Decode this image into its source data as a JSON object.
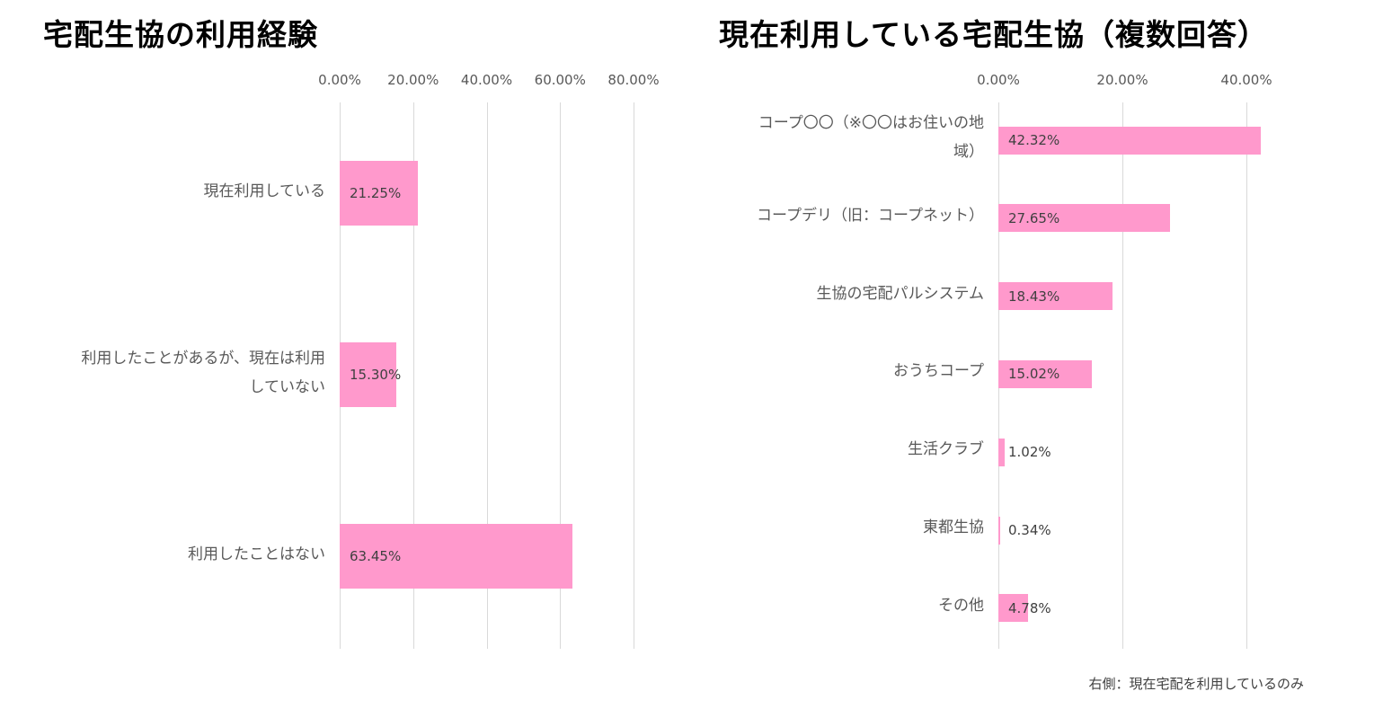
{
  "chart_data": [
    {
      "type": "bar",
      "orientation": "horizontal",
      "title": "宅配生協の利用経験",
      "categories": [
        "現在利用している",
        "利用したことがあるが、現在は利用していない",
        "利用したことはない"
      ],
      "category_display": [
        "現在利用している",
        "利用したことがあるが、現在は利用\nしていない",
        "利用したことはない"
      ],
      "values": [
        21.25,
        15.3,
        63.45
      ],
      "value_labels": [
        "21.25%",
        "15.30%",
        "63.45%"
      ],
      "xlim": [
        0,
        80
      ],
      "tick_values": [
        0,
        20,
        40,
        60,
        80
      ],
      "tick_labels": [
        "0.00%",
        "20.00%",
        "40.00%",
        "60.00%",
        "80.00%"
      ],
      "grid": true,
      "bar_color": "#ff99cc"
    },
    {
      "type": "bar",
      "orientation": "horizontal",
      "title": "現在利用している宅配生協（複数回答）",
      "categories": [
        "コープ〇〇（※〇〇はお住いの地域）",
        "コープデリ（旧：コープネット）",
        "生協の宅配パルシステム",
        "おうちコープ",
        "生活クラブ",
        "東都生協",
        "その他"
      ],
      "category_display": [
        "コープ〇〇（※〇〇はお住いの地\n域）",
        "コープデリ（旧：コープネット）",
        "生協の宅配パルシステム",
        "おうちコープ",
        "生活クラブ",
        "東都生協",
        "その他"
      ],
      "values": [
        42.32,
        27.65,
        18.43,
        15.02,
        1.02,
        0.34,
        4.78
      ],
      "value_labels": [
        "42.32%",
        "27.65%",
        "18.43%",
        "15.02%",
        "1.02%",
        "0.34%",
        "4.78%"
      ],
      "xlim": [
        0,
        45
      ],
      "tick_values": [
        0,
        20,
        40
      ],
      "tick_labels": [
        "0.00%",
        "20.00%",
        "40.00%"
      ],
      "grid": true,
      "bar_color": "#ff99cc"
    }
  ],
  "footnote": "右側：現在宅配を利用しているのみ"
}
